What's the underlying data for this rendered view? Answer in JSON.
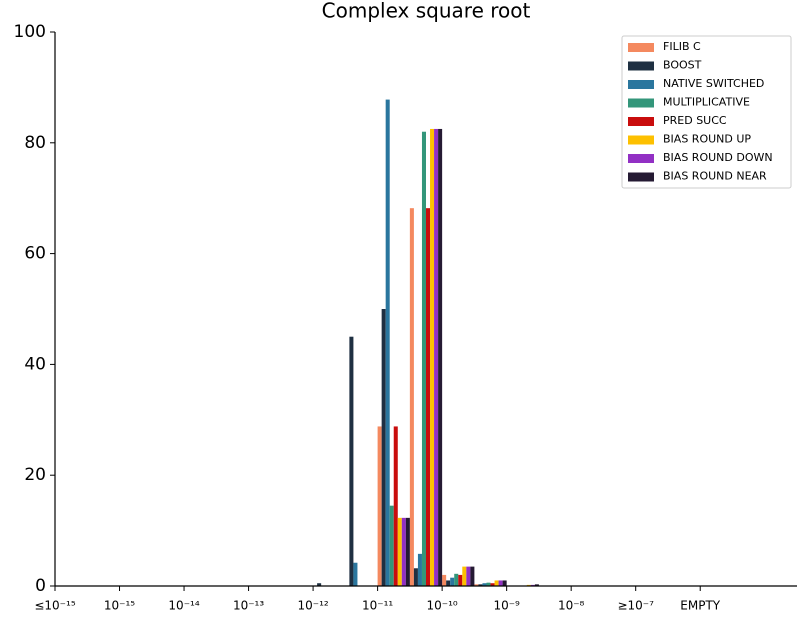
{
  "chart_data": {
    "type": "bar",
    "title": "Complex square root",
    "x": [
      4,
      4.5,
      5,
      5.5,
      6,
      6.5,
      7
    ],
    "xlim": [
      0,
      11.5
    ],
    "xticks": [
      {
        "value": 0,
        "label": "≤10⁻¹⁵"
      },
      {
        "value": 1,
        "label": "10⁻¹⁵"
      },
      {
        "value": 2,
        "label": "10⁻¹⁴"
      },
      {
        "value": 3,
        "label": "10⁻¹³"
      },
      {
        "value": 4,
        "label": "10⁻¹²"
      },
      {
        "value": 5,
        "label": "10⁻¹¹"
      },
      {
        "value": 6,
        "label": "10⁻¹⁰"
      },
      {
        "value": 7,
        "label": "10⁻⁹"
      },
      {
        "value": 8,
        "label": "10⁻⁸"
      },
      {
        "value": 9,
        "label": "≥10⁻⁷"
      },
      {
        "value": 10,
        "label": "EMPTY"
      }
    ],
    "ylim": [
      0,
      100
    ],
    "yticks": [
      0,
      20,
      40,
      60,
      80,
      100
    ],
    "legend": "upper right",
    "series": [
      {
        "name": "FILIB C",
        "color": "#f4895f",
        "values": [
          0,
          0,
          28.8,
          68.2,
          2,
          0.3,
          0
        ]
      },
      {
        "name": "BOOST",
        "color": "#1f3042",
        "values": [
          0.5,
          45,
          50,
          3.2,
          1,
          0.3,
          0
        ]
      },
      {
        "name": "NATIVE SWITCHED",
        "color": "#2a769e",
        "values": [
          0,
          4.2,
          87.8,
          5.8,
          1.5,
          0.5,
          0
        ]
      },
      {
        "name": "MULTIPLICATIVE",
        "color": "#33967a",
        "values": [
          0,
          0,
          14.5,
          82,
          2.2,
          0.6,
          0
        ]
      },
      {
        "name": "PRED SUCC",
        "color": "#c90d0d",
        "values": [
          0,
          0,
          28.8,
          68.2,
          2,
          0.5,
          0
        ]
      },
      {
        "name": "BIAS ROUND UP",
        "color": "#fdc000",
        "values": [
          0,
          0,
          12.3,
          82.5,
          3.5,
          1,
          0.2
        ]
      },
      {
        "name": "BIAS ROUND DOWN",
        "color": "#9230c4",
        "values": [
          0,
          0,
          12.3,
          82.5,
          3.5,
          1,
          0.2
        ]
      },
      {
        "name": "BIAS ROUND NEAR",
        "color": "#251a33",
        "values": [
          0,
          0,
          12.3,
          82.5,
          3.5,
          1,
          0.3
        ]
      }
    ]
  }
}
